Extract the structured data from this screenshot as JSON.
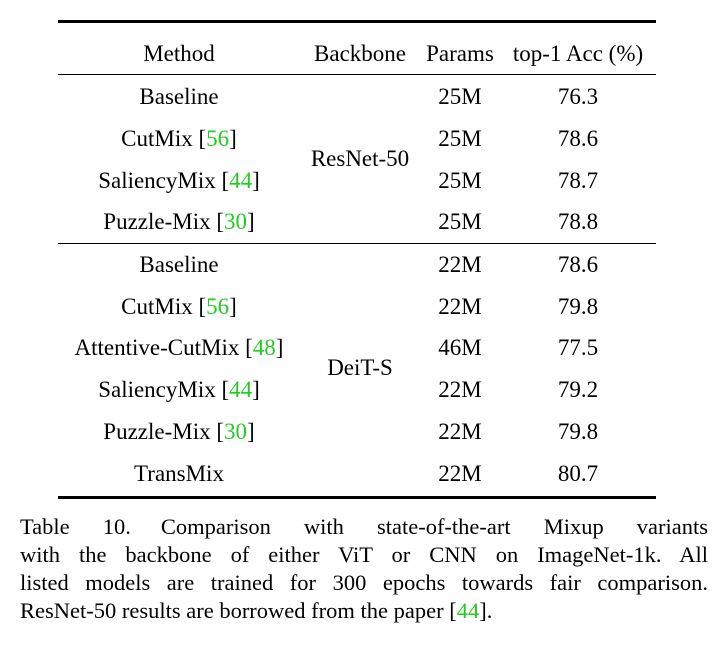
{
  "table": {
    "headers": {
      "method": "Method",
      "backbone": "Backbone",
      "params": "Params",
      "acc": "top-1 Acc (%)"
    },
    "groups": [
      {
        "backbone": "ResNet-50",
        "rows": [
          {
            "method": "Baseline",
            "cite": "",
            "params": "25M",
            "acc": "76.3"
          },
          {
            "method": "CutMix [",
            "cite": "56",
            "params": "25M",
            "acc": "78.6"
          },
          {
            "method": "SaliencyMix [",
            "cite": "44",
            "params": "25M",
            "acc": "78.7"
          },
          {
            "method": "Puzzle-Mix [",
            "cite": "30",
            "params": "25M",
            "acc": "78.8"
          }
        ]
      },
      {
        "backbone": "DeiT-S",
        "rows": [
          {
            "method": "Baseline",
            "cite": "",
            "params": "22M",
            "acc": "78.6"
          },
          {
            "method": "CutMix [",
            "cite": "56",
            "params": "22M",
            "acc": "79.8"
          },
          {
            "method": "Attentive-CutMix [",
            "cite": "48",
            "params": "46M",
            "acc": "77.5"
          },
          {
            "method": "SaliencyMix [",
            "cite": "44",
            "params": "22M",
            "acc": "79.2"
          },
          {
            "method": "Puzzle-Mix [",
            "cite": "30",
            "params": "22M",
            "acc": "79.8"
          },
          {
            "method": "TransMix",
            "cite": "",
            "params": "22M",
            "acc": "80.7"
          }
        ]
      }
    ],
    "close_bracket": "]"
  },
  "caption": {
    "label": "Table 10.",
    "line1": "Comparison with state-of-the-art Mixup variants",
    "line2": "with the backbone of either ViT or CNN on ImageNet-1k. All",
    "line3": "listed models are trained for 300 epochs towards fair comparison.",
    "line4_pre": "ResNet-50 results are borrowed from the paper [",
    "line4_cite": "44",
    "line4_post": "]."
  },
  "colors": {
    "citation": "#22cc22"
  }
}
